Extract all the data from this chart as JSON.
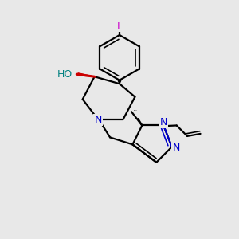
{
  "background_color": "#e8e8e8",
  "bond_color": "#000000",
  "nitrogen_color": "#0000cc",
  "oxygen_color": "#cc0000",
  "fluorine_color": "#cc00cc",
  "hydrogen_color": "#008080",
  "fig_width": 3.0,
  "fig_height": 3.0,
  "dpi": 100,
  "xlim": [
    0,
    10
  ],
  "ylim": [
    0,
    10
  ]
}
